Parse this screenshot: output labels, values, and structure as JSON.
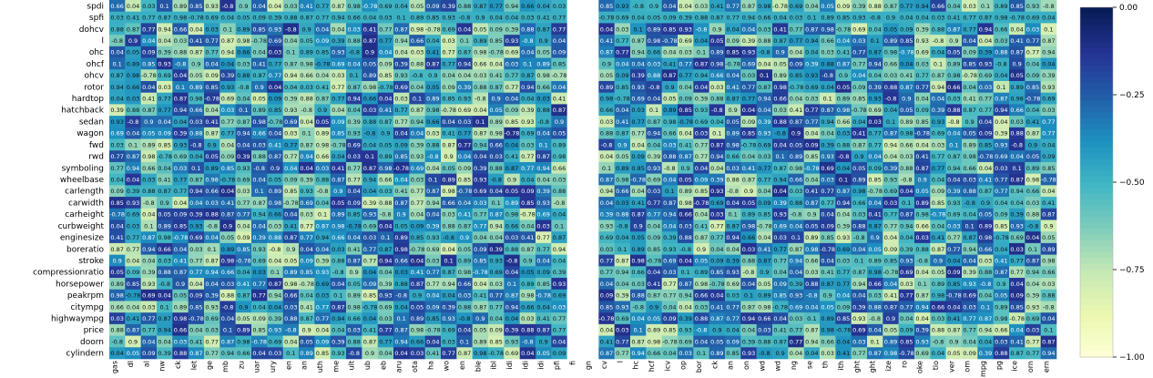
{
  "chart_data": {
    "type": "heatmap",
    "rows": [
      "spdi",
      "spfi",
      "dohcv",
      "l",
      "ohc",
      "ohcf",
      "ohcv",
      "rotor",
      "hardtop",
      "hatchback",
      "sedan",
      "wagon",
      "fwd",
      "rwd",
      "symboling",
      "wheelbase",
      "carlength",
      "carwidth",
      "carheight",
      "curbweight",
      "enginesize",
      "boreratio",
      "stroke",
      "compressionratio",
      "horsepower",
      "peakrpm",
      "citympg",
      "highwaympg",
      "price",
      "doorn",
      "cylindern"
    ],
    "column_fragments": [
      "gas",
      "dl",
      "al",
      "nw",
      "ck",
      "let",
      "ge",
      "mb",
      "zu",
      "uar",
      "ury",
      "en",
      "an",
      "uth",
      "me",
      "ult",
      "ub",
      "eb",
      "aru",
      "ota",
      "ha",
      "wo",
      "en",
      "ble",
      "ibl",
      "idi",
      "idi",
      "idi",
      "pfi",
      "fi",
      "gn",
      "cv",
      "l",
      "hc",
      "hcf",
      "icv",
      "op",
      "bor",
      "ck",
      "an",
      "on",
      "wd",
      "wd",
      "ng",
      "se",
      "th",
      "ith",
      "ght",
      "ght",
      "ize",
      "ro",
      "oke",
      "tio",
      "ver",
      "om",
      "mpg",
      "pg",
      "ice",
      "orn",
      "ern"
    ],
    "colormap": "YlGnBu",
    "colors": [
      "#ffffd9",
      "#edf8b1",
      "#c7e9b4",
      "#7fcdbb",
      "#41b6c4",
      "#1d91c0",
      "#225ea8",
      "#253494",
      "#081d58"
    ],
    "annotation_samples": [
      "0.66",
      "0.04",
      "0.04",
      "0.04",
      "0.04",
      "0.05",
      "0.03",
      "0.03",
      "0.09",
      "0.1",
      "0.41",
      "0.39",
      "0.89",
      "0.77",
      "0.88",
      "0.85",
      "0.87",
      "0.87",
      "0.93",
      "0.98",
      "0.77",
      "-0.8",
      "-0.78",
      "0.94",
      "0.9",
      "0.69"
    ],
    "colorbar": {
      "range": [
        -1.0,
        0.0
      ],
      "ticks": [
        "0.00",
        "−0.25",
        "−0.50",
        "−0.75",
        "−1.00"
      ]
    }
  }
}
